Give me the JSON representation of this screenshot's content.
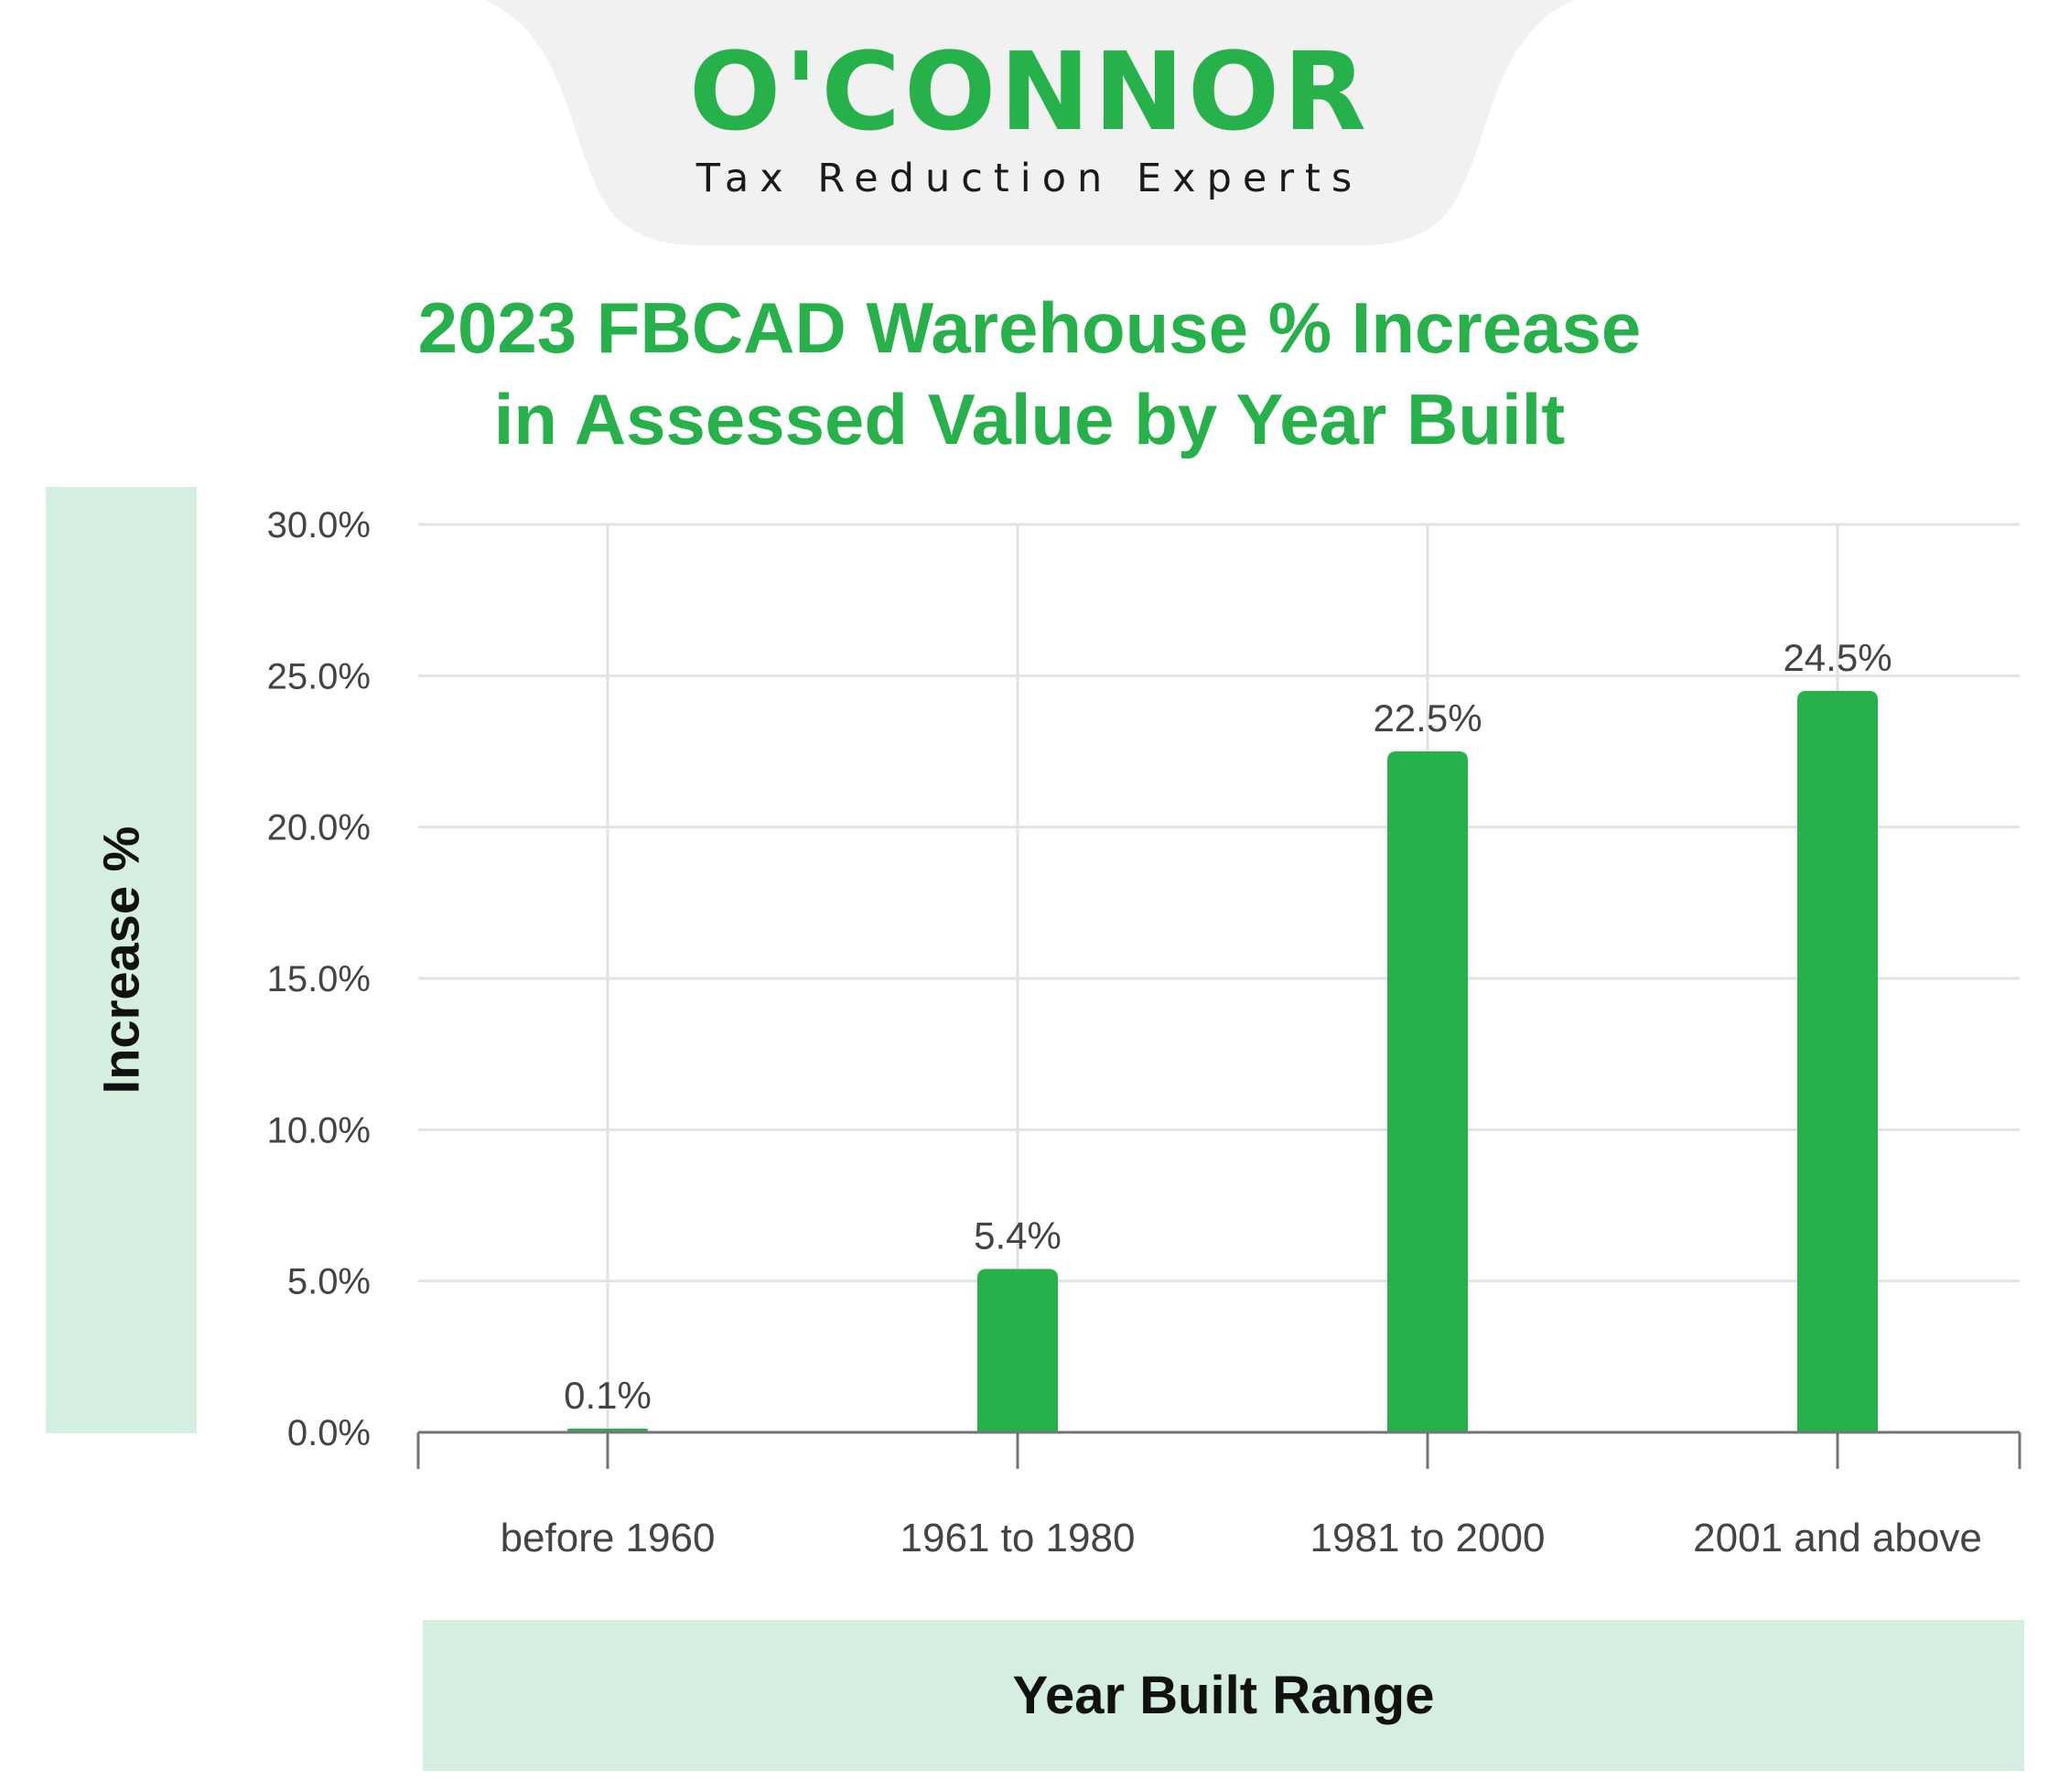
{
  "brand": {
    "name": "O'CONNOR",
    "tagline": "Tax Reduction Experts",
    "color": "#27b14b"
  },
  "chart_data": {
    "type": "bar",
    "title": "2023 FBCAD Warehouse % Increase in Assessed Value by Year Built",
    "title_lines": [
      "2023 FBCAD Warehouse % Increase",
      "in Assessed Value by Year Built"
    ],
    "xlabel": "Year Built Range",
    "ylabel": "Increase %",
    "categories": [
      "before 1960",
      "1961 to 1980",
      "1981 to 2000",
      "2001 and above"
    ],
    "values": [
      0.1,
      5.4,
      22.5,
      24.5
    ],
    "value_labels": [
      "0.1%",
      "5.4%",
      "22.5%",
      "24.5%"
    ],
    "ylim": [
      0,
      30
    ],
    "yticks": [
      0,
      5,
      10,
      15,
      20,
      25,
      30
    ],
    "ytick_labels": [
      "0.0%",
      "5.0%",
      "10.0%",
      "15.0%",
      "20.0%",
      "25.0%",
      "30.0%"
    ],
    "grid": true,
    "bar_color": "#27b14b",
    "label_box_color": "#d4eedf"
  }
}
